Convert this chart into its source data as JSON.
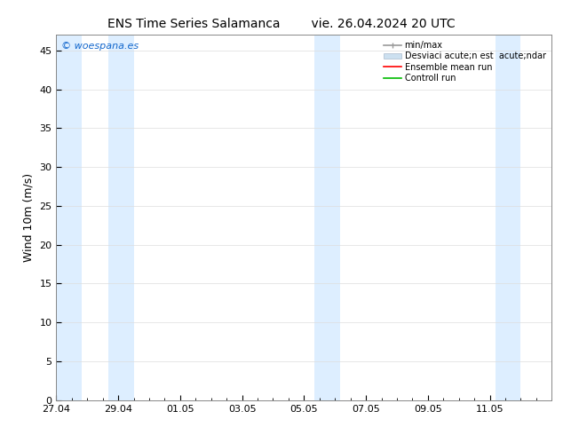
{
  "title_left": "ENS Time Series Salamanca",
  "title_right": "vie. 26.04.2024 20 UTC",
  "ylabel": "Wind 10m (m/s)",
  "watermark": "© woespana.es",
  "watermark_color": "#1166cc",
  "background_color": "#ffffff",
  "plot_bg_color": "#ffffff",
  "ylim": [
    0,
    47
  ],
  "yticks": [
    0,
    5,
    10,
    15,
    20,
    25,
    30,
    35,
    40,
    45
  ],
  "xlim": [
    0,
    16
  ],
  "xtick_labels": [
    "27.04",
    "29.04",
    "01.05",
    "03.05",
    "05.05",
    "07.05",
    "09.05",
    "11.05"
  ],
  "xtick_positions": [
    0,
    2,
    4,
    6,
    8,
    10,
    12,
    14
  ],
  "shaded_bands": [
    [
      0.0,
      0.83
    ],
    [
      1.67,
      2.5
    ],
    [
      8.33,
      9.17
    ],
    [
      14.17,
      15.0
    ]
  ],
  "shaded_color": "#ddeeff",
  "grid_color": "#dddddd",
  "title_fontsize": 10,
  "tick_fontsize": 8,
  "ylabel_fontsize": 9,
  "legend_fontsize": 7,
  "legend_label_1": "min/max",
  "legend_label_2": "Desviaci acute;n est  acute;ndar",
  "legend_label_3": "Ensemble mean run",
  "legend_label_4": "Controll run",
  "legend_color_1": "#999999",
  "legend_color_2": "#cce0f0",
  "legend_color_3": "#ff0000",
  "legend_color_4": "#00bb00"
}
